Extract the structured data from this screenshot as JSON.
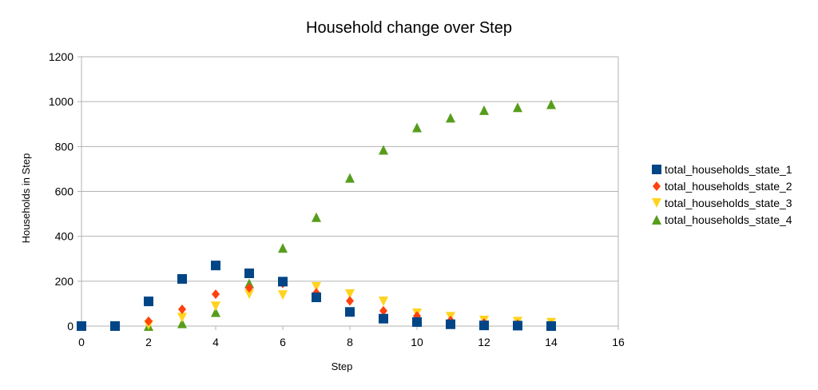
{
  "chart_data": {
    "type": "scatter",
    "title": "Household change over Step",
    "xlabel": "Step",
    "ylabel": "Households in Step",
    "xlim": [
      0,
      16
    ],
    "ylim": [
      0,
      1200
    ],
    "xticks": [
      0,
      2,
      4,
      6,
      8,
      10,
      12,
      14,
      16
    ],
    "yticks": [
      0,
      200,
      400,
      600,
      800,
      1000,
      1200
    ],
    "grid": "horizontal",
    "legend_position": "right",
    "series": [
      {
        "name": "total_households_state_1",
        "marker": "square",
        "color": "#004586",
        "x": [
          0,
          1,
          2,
          3,
          4,
          5,
          6,
          7,
          8,
          9,
          10,
          11,
          12,
          13,
          14
        ],
        "y": [
          0,
          0,
          110,
          210,
          270,
          235,
          198,
          128,
          63,
          33,
          18,
          8,
          3,
          2,
          0
        ]
      },
      {
        "name": "total_households_state_2",
        "marker": "diamond",
        "color": "#ff420e",
        "x": [
          0,
          1,
          2,
          3,
          4,
          5,
          6,
          7,
          8,
          9,
          10,
          11,
          12,
          13,
          14
        ],
        "y": [
          0,
          0,
          22,
          75,
          142,
          170,
          190,
          148,
          112,
          68,
          45,
          25,
          14,
          8,
          3
        ]
      },
      {
        "name": "total_households_state_3",
        "marker": "triangle-down",
        "color": "#ffd320",
        "x": [
          0,
          1,
          2,
          3,
          4,
          5,
          6,
          7,
          8,
          9,
          10,
          11,
          12,
          13,
          14
        ],
        "y": [
          0,
          0,
          5,
          38,
          88,
          142,
          138,
          175,
          143,
          110,
          57,
          42,
          25,
          20,
          15
        ]
      },
      {
        "name": "total_households_state_4",
        "marker": "triangle-up",
        "color": "#579d1c",
        "x": [
          0,
          1,
          2,
          3,
          4,
          5,
          6,
          7,
          8,
          9,
          10,
          11,
          12,
          13,
          14
        ],
        "y": [
          0,
          0,
          0,
          12,
          62,
          190,
          348,
          485,
          660,
          785,
          885,
          928,
          962,
          975,
          988
        ]
      }
    ]
  }
}
